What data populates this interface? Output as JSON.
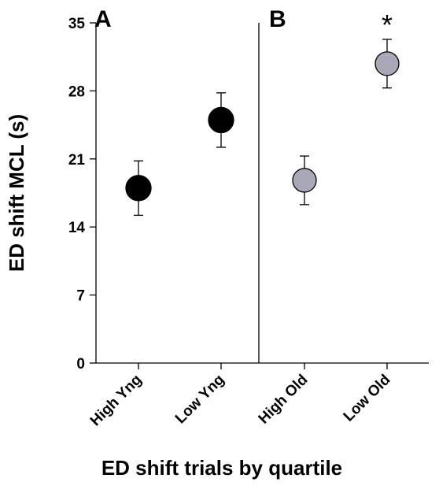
{
  "chart_data": {
    "type": "scatter",
    "title": "",
    "xlabel": "ED shift trials by quartile",
    "ylabel": "ED shift MCL (s)",
    "ylim": [
      0,
      35
    ],
    "yticks": [
      0,
      7,
      14,
      21,
      28,
      35
    ],
    "grid": false,
    "panel_labels": [
      "A",
      "B"
    ],
    "categories": [
      "High Yng",
      "Low Yng",
      "High Old",
      "Low Old"
    ],
    "values": [
      18.0,
      25.0,
      18.8,
      30.8
    ],
    "error": [
      2.8,
      2.8,
      2.5,
      2.5
    ],
    "point_colors": [
      "#000000",
      "#000000",
      "#a8a8b8",
      "#a8a8b8"
    ],
    "significance": [
      "",
      "",
      "",
      "*"
    ]
  }
}
